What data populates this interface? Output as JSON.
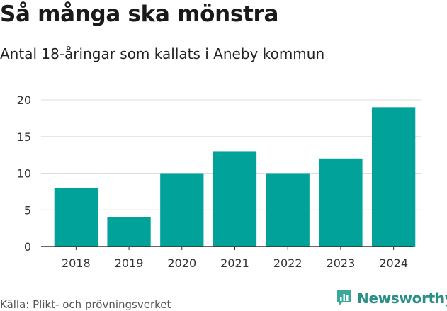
{
  "title": "Så många ska mönstra",
  "subtitle": "Antal 18-åringar som kallats i Aneby kommun",
  "source": "Källa: Plikt- och prövningsverket",
  "brand": {
    "name": "Newsworthy",
    "icon": "bar-chart-logo-icon",
    "color": "#2a9d8f"
  },
  "colors": {
    "bar": "#00a29a",
    "grid": "#dddddd",
    "axis": "#333333"
  },
  "chart_data": {
    "type": "bar",
    "categories": [
      "2018",
      "2019",
      "2020",
      "2021",
      "2022",
      "2023",
      "2024"
    ],
    "values": [
      8,
      4,
      10,
      13,
      10,
      12,
      19
    ],
    "yticks": [
      0,
      5,
      10,
      15,
      20
    ],
    "ylim": [
      0,
      20
    ],
    "grid": true,
    "title": "Så många ska mönstra",
    "subtitle": "Antal 18-åringar som kallats i Aneby kommun"
  }
}
